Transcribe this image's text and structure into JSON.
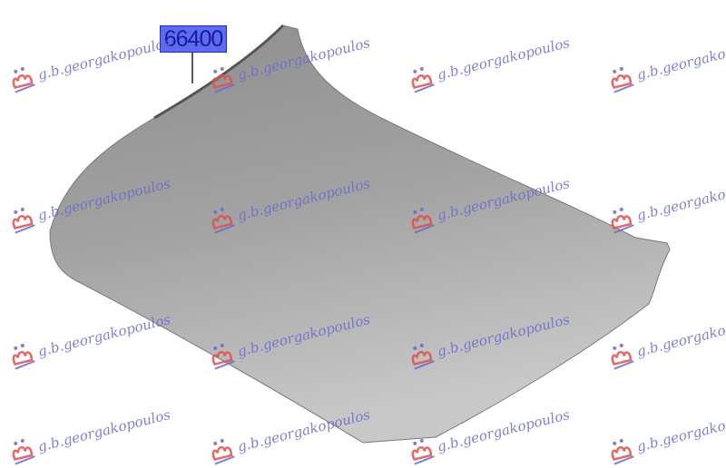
{
  "part_label": "66400",
  "watermark_text": "g.b.georgakopoulos",
  "colors": {
    "label_bg": "#5b6cf0",
    "hood": "#9c9c9c",
    "watermark_logo": "#e05050",
    "watermark_text": "#6a6ad0"
  }
}
